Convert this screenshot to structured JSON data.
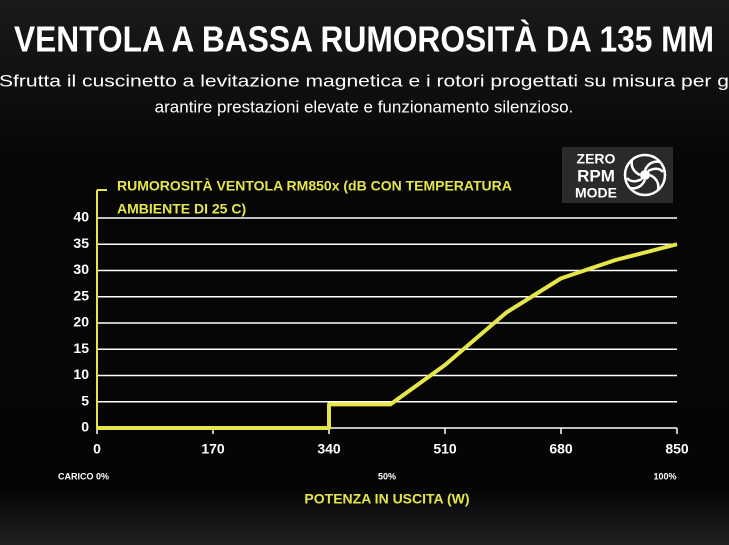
{
  "heading": "VENTOLA A BASSA RUMOROSITÀ DA 135 MM",
  "subtitle_lines": [
    "Sfrutta il cuscinetto a levitazione magnetica e i rotori progettati su misura per g",
    "arantire prestazioni elevate e funzionamento silenzioso."
  ],
  "badge": [
    "ZERO",
    "RPM",
    "MODE"
  ],
  "chart_data": {
    "type": "line",
    "title": [
      "RUMOROSITÀ VENTOLA RM850x (dB CON TEMPERATURA",
      "AMBIENTE DI 25 C)"
    ],
    "x": [
      0,
      340,
      340,
      430,
      510,
      600,
      680,
      760,
      850
    ],
    "values": [
      0,
      0,
      4.5,
      4.5,
      12,
      22,
      28.5,
      32,
      35
    ],
    "color": "#e6e64a",
    "xlim": [
      0,
      850
    ],
    "xticks": [
      0,
      170,
      340,
      510,
      680,
      850
    ],
    "ylim": [
      0,
      40
    ],
    "yticks": [
      0,
      5,
      10,
      15,
      20,
      25,
      30,
      35,
      40
    ],
    "grid": true,
    "xlabel": "POTENZA IN USCITA (W)",
    "annotations": [
      {
        "text": "CARICO 0%",
        "x": 0
      },
      {
        "text": "50%",
        "x": 425
      },
      {
        "text": "100%",
        "x": 850
      }
    ]
  }
}
